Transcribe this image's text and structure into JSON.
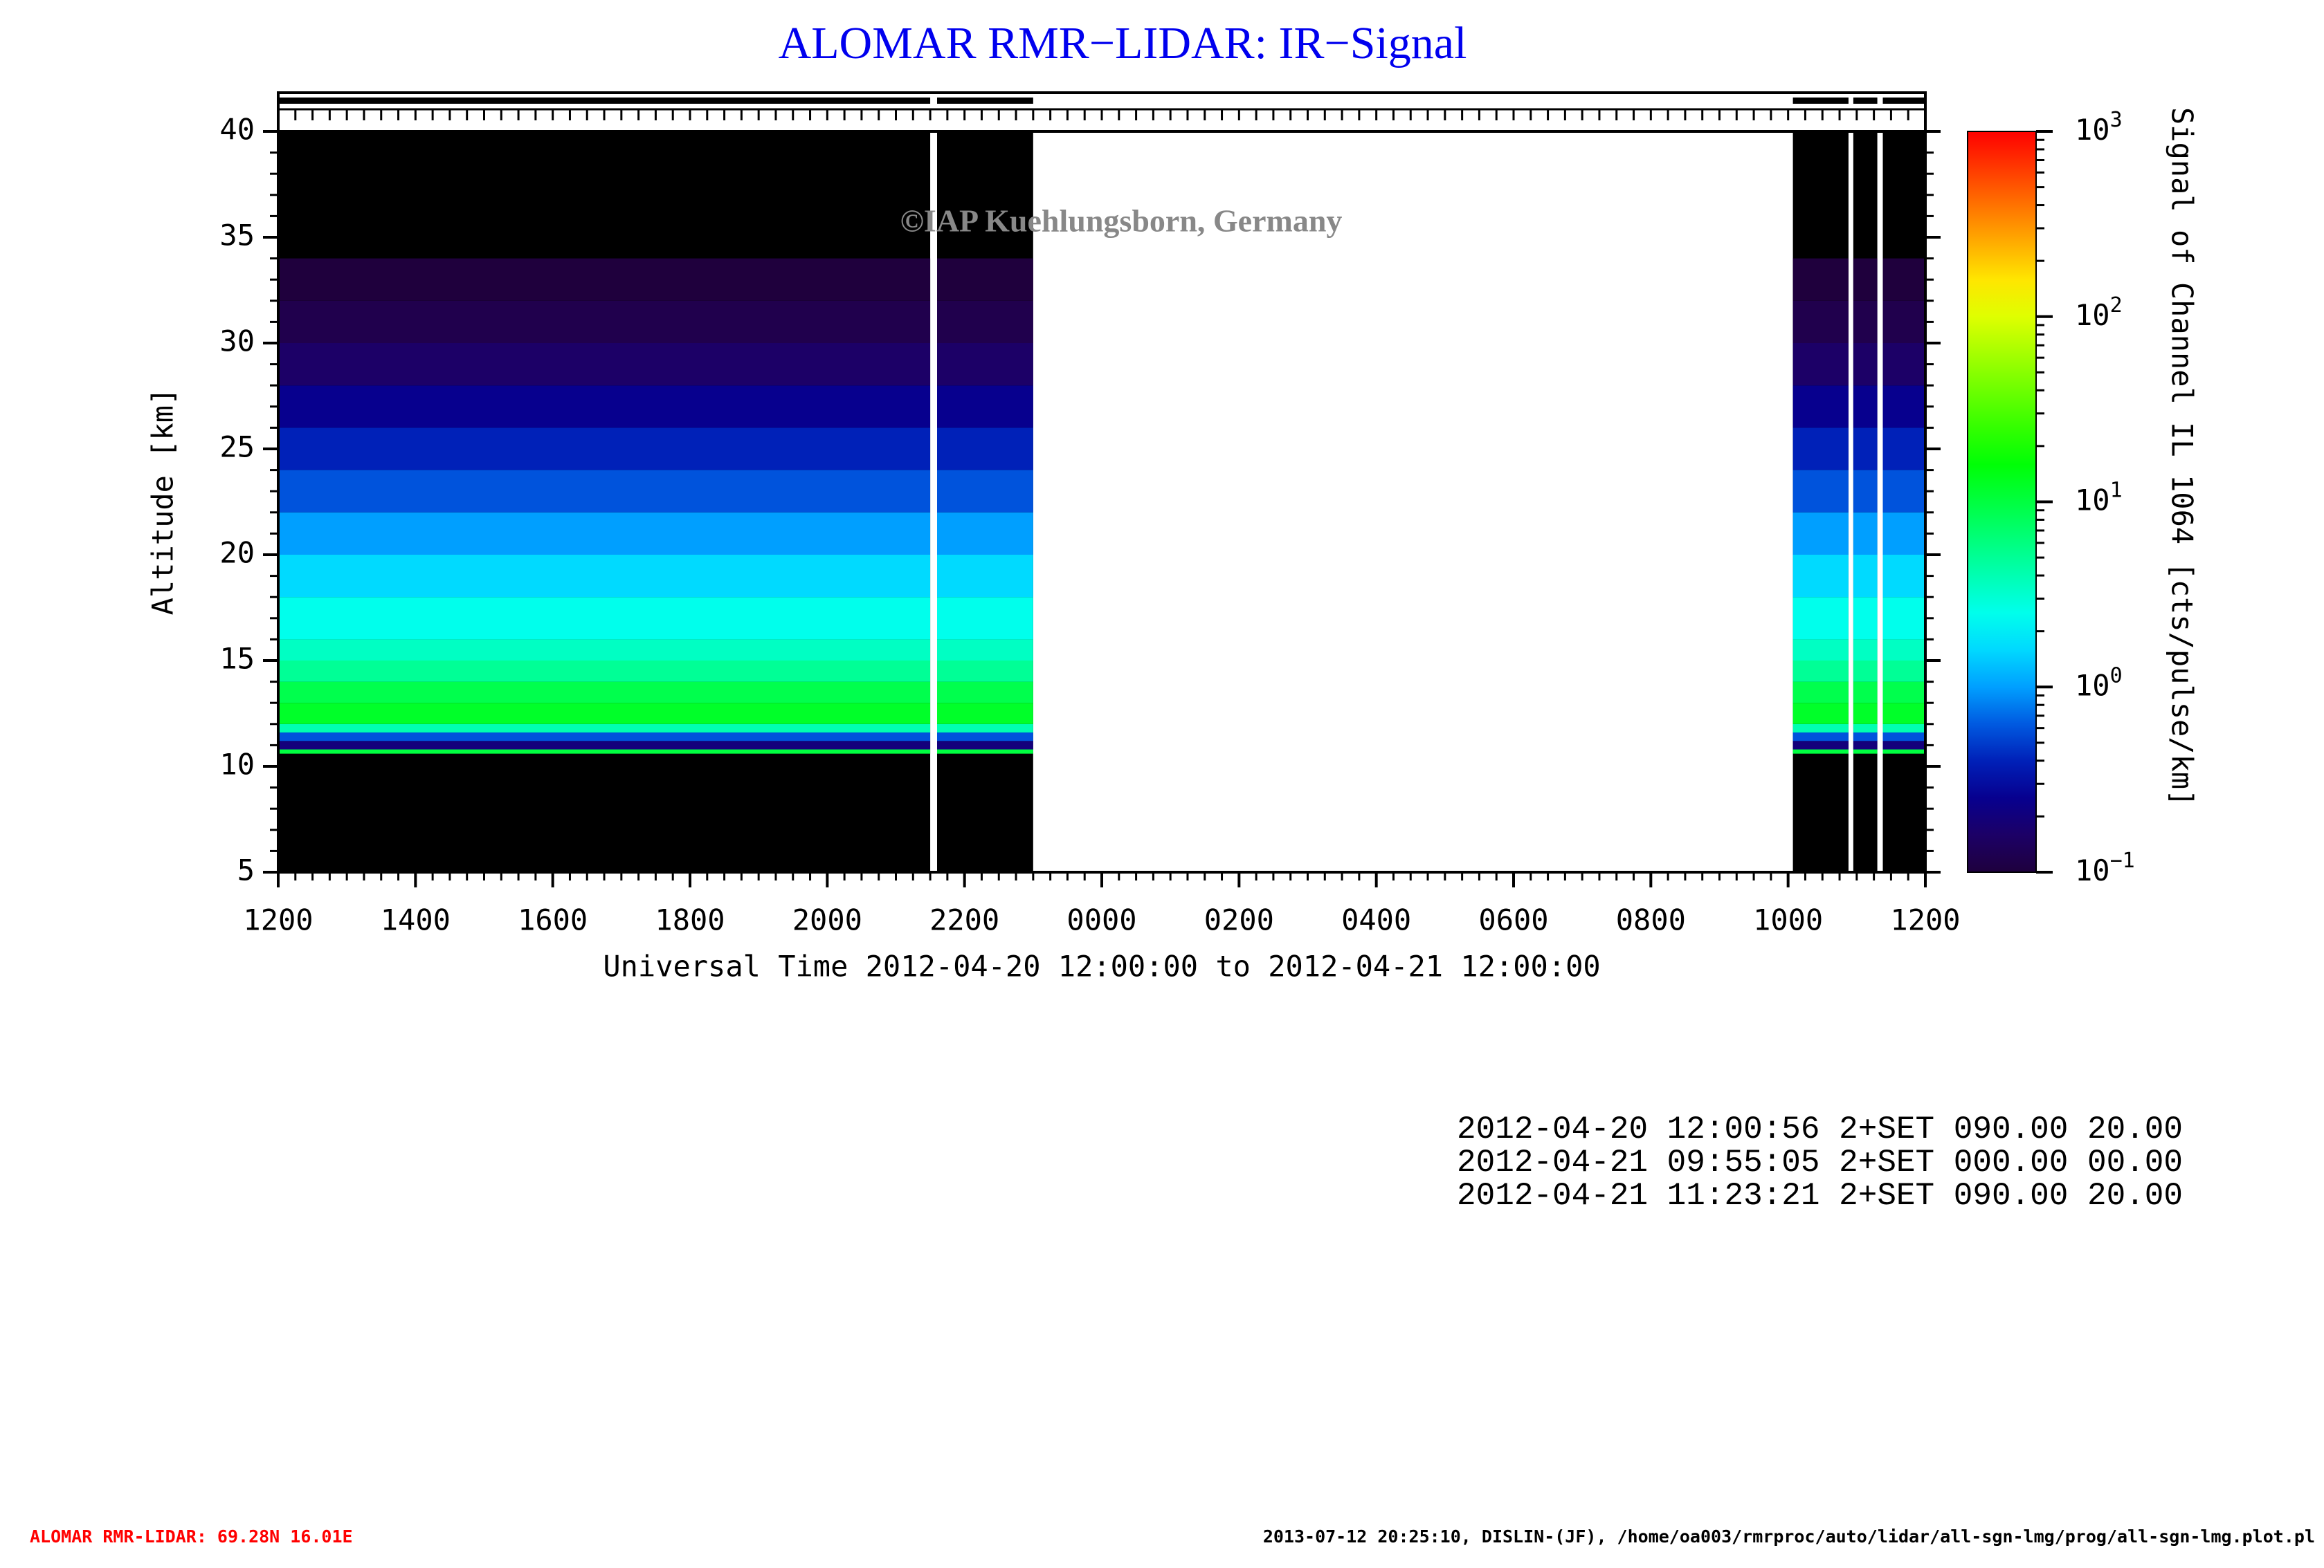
{
  "chart_data": {
    "type": "heatmap",
    "title": "ALOMAR RMR−LIDAR: IR−Signal",
    "watermark": "©IAP Kuehlungsborn, Germany",
    "xlabel": "Universal Time 2012-04-20 12:00:00 to 2012-04-21 12:00:00",
    "ylabel": "Altitude [km]",
    "colorbar_label": "Signal of Channel IL 1064 [cts/pulse/km]",
    "xlim": [
      0,
      24
    ],
    "xticks": [
      {
        "value": 0,
        "label": "1200"
      },
      {
        "value": 2,
        "label": "1400"
      },
      {
        "value": 4,
        "label": "1600"
      },
      {
        "value": 6,
        "label": "1800"
      },
      {
        "value": 8,
        "label": "2000"
      },
      {
        "value": 10,
        "label": "2200"
      },
      {
        "value": 12,
        "label": "0000"
      },
      {
        "value": 14,
        "label": "0200"
      },
      {
        "value": 16,
        "label": "0400"
      },
      {
        "value": 18,
        "label": "0600"
      },
      {
        "value": 20,
        "label": "0800"
      },
      {
        "value": 22,
        "label": "1000"
      },
      {
        "value": 24,
        "label": "1200"
      }
    ],
    "ylim": [
      5,
      40
    ],
    "yticks": [
      5,
      10,
      15,
      20,
      25,
      30,
      35,
      40
    ],
    "clim": [
      0.1,
      1000
    ],
    "color_log": true,
    "cticks": [
      {
        "value": 0.1,
        "label": "10",
        "exponent": "−1"
      },
      {
        "value": 1,
        "label": "10",
        "exponent": "0"
      },
      {
        "value": 10,
        "label": "10",
        "exponent": "1"
      },
      {
        "value": 100,
        "label": "10",
        "exponent": "2"
      },
      {
        "value": 1000,
        "label": "10",
        "exponent": "3"
      }
    ],
    "altitude_bins": [
      10.6,
      10.8,
      11.2,
      11.6,
      12,
      13,
      14,
      15,
      16,
      18,
      20,
      22,
      24,
      26,
      28,
      30,
      32,
      34
    ],
    "profile": [
      10,
      0.2,
      0.6,
      4,
      12,
      9,
      5,
      3.5,
      2.5,
      1.6,
      1.0,
      0.6,
      0.4,
      0.25,
      0.16,
      0.12,
      0.1
    ],
    "observations": [
      {
        "start": 0,
        "end": 9.5
      },
      {
        "start": 9.6,
        "end": 11.0
      },
      {
        "start": 22.07,
        "end": 22.88
      },
      {
        "start": 22.95,
        "end": 23.3
      },
      {
        "start": 23.38,
        "end": 24
      }
    ]
  },
  "records": [
    "2012-04-20 12:00:56 2+SET 090.00 20.00",
    "2012-04-21 09:55:05 2+SET 000.00 00.00",
    "2012-04-21 11:23:21 2+SET 090.00 20.00"
  ],
  "footer_left": "ALOMAR RMR-LIDAR: 69.28N 16.01E",
  "footer_right": "2013-07-12 20:25:10, DISLIN-(JF), /home/oa003/rmrproc/auto/lidar/all-sgn-lmg/prog/all-sgn-lmg.plot.pl"
}
